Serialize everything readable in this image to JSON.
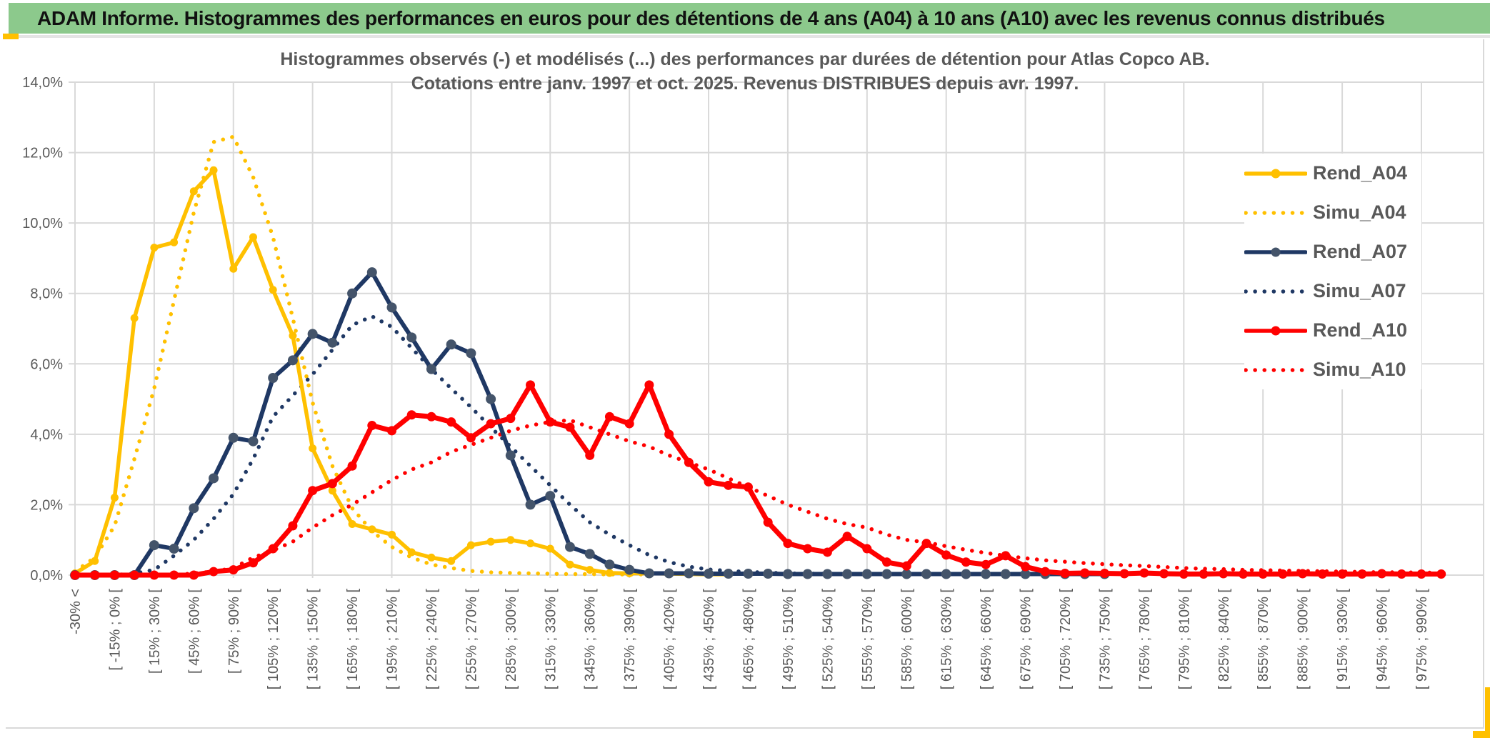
{
  "header": {
    "title": "ADAM Informe. Histogrammes des performances en euros pour des détentions de 4 ans (A04) à 10 ans (A10) avec les revenus connus distribués"
  },
  "chart": {
    "title_line1": "Histogrammes observés (-) et modélisés (...) des performances par durées de détention pour Atlas Copco AB.",
    "title_line2": "Cotations entre janv. 1997 et oct. 2025. Revenus DISTRIBUES depuis avr. 1997."
  },
  "legend": {
    "items": [
      {
        "label": "Rend_A04",
        "color": "#FFC000",
        "marker_color": "#FFC000",
        "style": "solid"
      },
      {
        "label": "Simu_A04",
        "color": "#FFC000",
        "marker_color": "#FFC000",
        "style": "dotted"
      },
      {
        "label": "Rend_A07",
        "color": "#1F3864",
        "marker_color": "#44546A",
        "style": "solid"
      },
      {
        "label": "Simu_A07",
        "color": "#1F3864",
        "marker_color": "#1F3864",
        "style": "dotted"
      },
      {
        "label": "Rend_A10",
        "color": "#FF0000",
        "marker_color": "#FF0000",
        "style": "solid"
      },
      {
        "label": "Simu_A10",
        "color": "#FF0000",
        "marker_color": "#FF0000",
        "style": "dotted"
      }
    ]
  },
  "colors": {
    "header_bg": "#8CC98C",
    "accent_gold": "#FFC000",
    "grid": "#D9D9D9",
    "axis_text": "#595959",
    "title_text": "#595959"
  },
  "chart_data": {
    "type": "line",
    "title": "Histogrammes observés (-) et modélisés (...) des performances par durées de détention pour Atlas Copco AB. Cotations entre janv. 1997 et oct. 2025. Revenus DISTRIBUES depuis avr. 1997.",
    "grid": true,
    "legend_position": "right",
    "y_axis": {
      "unit": "%",
      "min": 0,
      "max": 14,
      "grid_step": 2,
      "tick_labels": [
        "14,0%",
        "12,0%",
        "10,0%",
        "8,0%",
        "6,0%",
        "4,0%",
        "2,0%",
        "0,0%"
      ]
    },
    "x_axis": {
      "num_bins": 70,
      "bin_width_pct": 15,
      "labels_every_n_bins": 2,
      "gridline_every_n_bins": 4,
      "tick_labels": [
        "-30% <",
        "[ -15% ; 0% [",
        "[ 15% ; 30% [",
        "[ 45% ; 60% [",
        "[ 75% ; 90% [",
        "[ 105% ; 120% [",
        "[ 135% ; 150% [",
        "[ 165% ; 180% [",
        "[ 195% ; 210% [",
        "[ 225% ; 240% [",
        "[ 255% ; 270% [",
        "[ 285% ; 300% [",
        "[ 315% ; 330% [",
        "[ 345% ; 360% [",
        "[ 375% ; 390% [",
        "[ 405% ; 420% [",
        "[ 435% ; 450% [",
        "[ 465% ; 480% [",
        "[ 495% ; 510% [",
        "[ 525% ; 540% [",
        "[ 555% ; 570% [",
        "[ 585% ; 600% [",
        "[ 615% ; 630% [",
        "[ 645% ; 660% [",
        "[ 675% ; 690% [",
        "[ 705% ; 720% [",
        "[ 735% ; 750% [",
        "[ 765% ; 780% [",
        "[ 795% ; 810% [",
        "[ 825% ; 840% [",
        "[ 855% ; 870% [",
        "[ 885% ; 900% [",
        "[ 915% ; 930% [",
        "[ 945% ; 960% [",
        "[ 975% ; 990% ["
      ]
    },
    "series": [
      {
        "name": "Simu_A04",
        "style": "dotted",
        "color": "#FFC000",
        "values": [
          0.1,
          0.5,
          1.4,
          3.3,
          5.3,
          7.8,
          10.3,
          12.3,
          12.45,
          11.3,
          9.6,
          7.3,
          4.9,
          3.1,
          1.9,
          1.25,
          0.8,
          0.5,
          0.3,
          0.2,
          0.12,
          0.08,
          0.06,
          0.05,
          0.04,
          0.03,
          0.03,
          0.02,
          0.02,
          0.02
        ]
      },
      {
        "name": "Simu_A07",
        "style": "dotted",
        "color": "#1F3864",
        "values": [
          0,
          0,
          0,
          0.05,
          0.15,
          0.55,
          1.0,
          1.6,
          2.3,
          3.3,
          4.5,
          5.1,
          5.7,
          6.4,
          7.1,
          7.35,
          7.05,
          6.45,
          5.85,
          5.3,
          4.77,
          4.2,
          3.65,
          3.1,
          2.55,
          2.0,
          1.5,
          1.15,
          0.85,
          0.57,
          0.37,
          0.24,
          0.16,
          0.12,
          0.09,
          0.07,
          0.05,
          0.04,
          0.04,
          0.03,
          0.03
        ]
      },
      {
        "name": "Simu_A10",
        "style": "dotted",
        "color": "#FF0000",
        "values": [
          0,
          0,
          0,
          0,
          0,
          0,
          0.05,
          0.1,
          0.2,
          0.5,
          0.7,
          0.95,
          1.35,
          1.7,
          2.0,
          2.35,
          2.7,
          3.0,
          3.2,
          3.5,
          3.7,
          3.9,
          4.1,
          4.25,
          4.35,
          4.4,
          4.2,
          4.0,
          3.8,
          3.65,
          3.4,
          3.2,
          3.0,
          2.75,
          2.5,
          2.25,
          2.0,
          1.8,
          1.6,
          1.45,
          1.35,
          1.15,
          1.0,
          0.93,
          0.82,
          0.72,
          0.63,
          0.55,
          0.48,
          0.42,
          0.38,
          0.34,
          0.31,
          0.28,
          0.26,
          0.23,
          0.2,
          0.18,
          0.17,
          0.15,
          0.14,
          0.13,
          0.12,
          0.11,
          0.1,
          0.09,
          0.08,
          0.08,
          0.07,
          0.07
        ]
      },
      {
        "name": "Rend_A04",
        "style": "solid",
        "color": "#FFC000",
        "marker_color": "#FFC000",
        "values": [
          0.05,
          0.4,
          2.2,
          7.3,
          9.3,
          9.45,
          10.9,
          11.5,
          8.7,
          9.6,
          8.1,
          6.8,
          3.6,
          2.4,
          1.45,
          1.3,
          1.15,
          0.65,
          0.5,
          0.4,
          0.85,
          0.95,
          1.0,
          0.9,
          0.75,
          0.3,
          0.15,
          0.06,
          0.05,
          0.05,
          0.04,
          0.03,
          0.02,
          0.02
        ]
      },
      {
        "name": "Rend_A07",
        "style": "solid",
        "color": "#1F3864",
        "marker_color": "#44546A",
        "values": [
          0,
          0,
          0,
          0,
          0.85,
          0.75,
          1.9,
          2.75,
          3.9,
          3.8,
          5.6,
          6.1,
          6.85,
          6.6,
          8.0,
          8.6,
          7.6,
          6.75,
          5.85,
          6.55,
          6.3,
          5.0,
          3.4,
          2.0,
          2.25,
          0.8,
          0.6,
          0.3,
          0.15,
          0.05,
          0.05,
          0.05,
          0.04,
          0.04,
          0.04,
          0.04,
          0.03,
          0.03,
          0.03,
          0.03,
          0.03,
          0.03,
          0.03,
          0.03,
          0.03,
          0.03,
          0.03,
          0.03,
          0.03,
          0.03,
          0.03,
          0.03,
          0.03
        ]
      },
      {
        "name": "Rend_A10",
        "style": "solid",
        "color": "#FF0000",
        "marker_color": "#FF0000",
        "values": [
          0,
          0,
          0,
          0,
          0,
          0,
          0,
          0.1,
          0.15,
          0.35,
          0.75,
          1.4,
          2.4,
          2.6,
          3.1,
          4.25,
          4.1,
          4.55,
          4.5,
          4.35,
          3.9,
          4.3,
          4.45,
          5.4,
          4.35,
          4.2,
          3.4,
          4.5,
          4.3,
          5.4,
          4.0,
          3.2,
          2.65,
          2.55,
          2.5,
          1.5,
          0.9,
          0.75,
          0.65,
          1.1,
          0.75,
          0.37,
          0.26,
          0.9,
          0.57,
          0.37,
          0.3,
          0.55,
          0.24,
          0.1,
          0.05,
          0.06,
          0.05,
          0.04,
          0.06,
          0.04,
          0.03,
          0.03,
          0.04,
          0.03,
          0.03,
          0.03,
          0.04,
          0.03,
          0.03,
          0.03,
          0.04,
          0.03,
          0.03,
          0.03
        ]
      }
    ]
  }
}
